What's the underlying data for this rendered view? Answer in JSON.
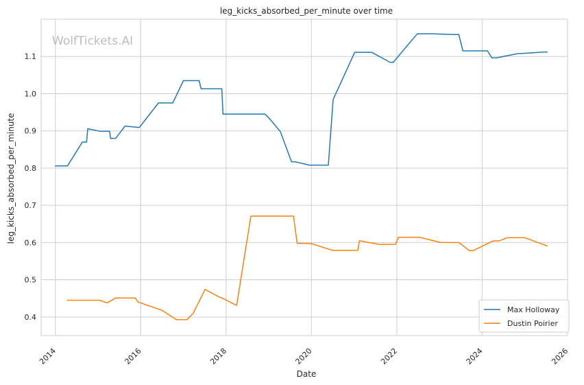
{
  "chart_data": {
    "type": "line",
    "title": "leg_kicks_absorbed_per_minute over time",
    "xlabel": "Date",
    "ylabel": "leg_kicks_absorbed_per_minute",
    "watermark": "WolfTickets.AI",
    "xlim": [
      "2013-09-01",
      "2026-01-01"
    ],
    "ylim": [
      0.35,
      1.2
    ],
    "x_ticks": [
      "2014",
      "2016",
      "2018",
      "2020",
      "2022",
      "2024",
      "2026"
    ],
    "y_ticks": [
      "0.4",
      "0.5",
      "0.6",
      "0.7",
      "0.8",
      "0.9",
      "1.0",
      "1.1"
    ],
    "grid": true,
    "legend_position": "lower-right",
    "series": [
      {
        "name": "Max Holloway",
        "color": "#1f77b4",
        "points": [
          [
            "2014-01-01",
            0.806
          ],
          [
            "2014-04-15",
            0.806
          ],
          [
            "2014-08-20",
            0.87
          ],
          [
            "2014-09-25",
            0.87
          ],
          [
            "2014-10-05",
            0.906
          ],
          [
            "2015-01-15",
            0.899
          ],
          [
            "2015-04-10",
            0.899
          ],
          [
            "2015-04-18",
            0.88
          ],
          [
            "2015-06-01",
            0.88
          ],
          [
            "2015-08-20",
            0.913
          ],
          [
            "2015-12-20",
            0.909
          ],
          [
            "2016-06-01",
            0.975
          ],
          [
            "2016-10-01",
            0.975
          ],
          [
            "2017-01-01",
            1.035
          ],
          [
            "2017-05-15",
            1.035
          ],
          [
            "2017-06-01",
            1.013
          ],
          [
            "2017-11-25",
            1.013
          ],
          [
            "2017-12-05",
            0.945
          ],
          [
            "2018-12-01",
            0.945
          ],
          [
            "2019-01-15",
            0.93
          ],
          [
            "2019-04-10",
            0.898
          ],
          [
            "2019-07-15",
            0.817
          ],
          [
            "2019-08-15",
            0.817
          ],
          [
            "2019-12-15",
            0.808
          ],
          [
            "2020-05-25",
            0.808
          ],
          [
            "2020-07-05",
            0.984
          ],
          [
            "2021-01-05",
            1.111
          ],
          [
            "2021-06-01",
            1.111
          ],
          [
            "2021-11-05",
            1.084
          ],
          [
            "2021-12-01",
            1.084
          ],
          [
            "2022-06-25",
            1.161
          ],
          [
            "2022-11-01",
            1.161
          ],
          [
            "2023-04-15",
            1.159
          ],
          [
            "2023-06-15",
            1.159
          ],
          [
            "2023-07-20",
            1.115
          ],
          [
            "2024-02-15",
            1.115
          ],
          [
            "2024-03-25",
            1.096
          ],
          [
            "2024-05-01",
            1.096
          ],
          [
            "2024-10-25",
            1.107
          ],
          [
            "2025-05-01",
            1.111
          ],
          [
            "2025-07-10",
            1.112
          ]
        ]
      },
      {
        "name": "Dustin Poirier",
        "color": "#ff7f0e",
        "points": [
          [
            "2014-04-15",
            0.445
          ],
          [
            "2015-01-15",
            0.445
          ],
          [
            "2015-03-20",
            0.438
          ],
          [
            "2015-06-01",
            0.451
          ],
          [
            "2015-11-15",
            0.451
          ],
          [
            "2015-12-10",
            0.44
          ],
          [
            "2016-07-01",
            0.418
          ],
          [
            "2016-11-01",
            0.393
          ],
          [
            "2017-02-01",
            0.393
          ],
          [
            "2017-03-25",
            0.41
          ],
          [
            "2017-07-05",
            0.474
          ],
          [
            "2017-11-01",
            0.454
          ],
          [
            "2017-12-10",
            0.449
          ],
          [
            "2018-04-01",
            0.431
          ],
          [
            "2018-08-01",
            0.671
          ],
          [
            "2019-08-01",
            0.671
          ],
          [
            "2019-09-01",
            0.598
          ],
          [
            "2020-01-01",
            0.597
          ],
          [
            "2020-07-01",
            0.579
          ],
          [
            "2021-02-01",
            0.579
          ],
          [
            "2021-02-15",
            0.605
          ],
          [
            "2021-08-01",
            0.595
          ],
          [
            "2021-12-20",
            0.595
          ],
          [
            "2022-01-15",
            0.614
          ],
          [
            "2022-07-15",
            0.614
          ],
          [
            "2023-01-15",
            0.6
          ],
          [
            "2023-06-15",
            0.6
          ],
          [
            "2023-09-15",
            0.578
          ],
          [
            "2023-10-15",
            0.578
          ],
          [
            "2024-04-01",
            0.604
          ],
          [
            "2024-06-01",
            0.605
          ],
          [
            "2024-08-01",
            0.613
          ],
          [
            "2025-01-01",
            0.613
          ],
          [
            "2025-07-10",
            0.591
          ]
        ]
      }
    ]
  }
}
